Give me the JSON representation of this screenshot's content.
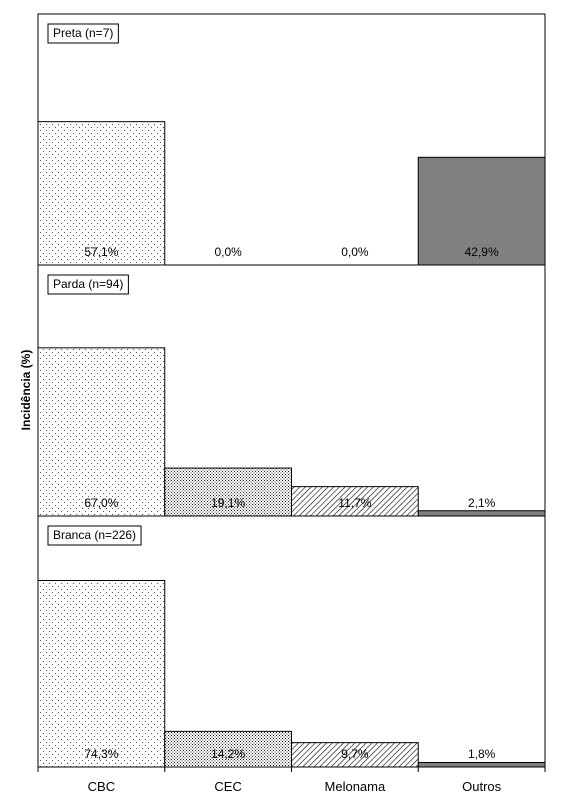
{
  "chart_data": {
    "type": "bar",
    "ylabel": "Incidência (%)",
    "categories": [
      "CBC",
      "CEC",
      "Melonama",
      "Outros"
    ],
    "ylim": [
      0,
      100
    ],
    "colors": {
      "CBC": "dots-pattern",
      "CEC": "dense-dots-pattern",
      "Melonama": "diagonal-hatch-pattern",
      "Outros": "#808080"
    },
    "panels": [
      {
        "label": "Preta (n=7)",
        "values": [
          57.1,
          0.0,
          0.0,
          42.9
        ],
        "value_labels": [
          "57,1%",
          "0,0%",
          "0,0%",
          "42,9%"
        ]
      },
      {
        "label": "Parda (n=94)",
        "values": [
          67.0,
          19.1,
          11.7,
          2.1
        ],
        "value_labels": [
          "67,0%",
          "19,1%",
          "11,7%",
          "2,1%"
        ]
      },
      {
        "label": "Branca (n=226)",
        "values": [
          74.3,
          14.2,
          9.7,
          1.8
        ],
        "value_labels": [
          "74,3%",
          "14,2%",
          "9,7%",
          "1,8%"
        ]
      }
    ]
  }
}
